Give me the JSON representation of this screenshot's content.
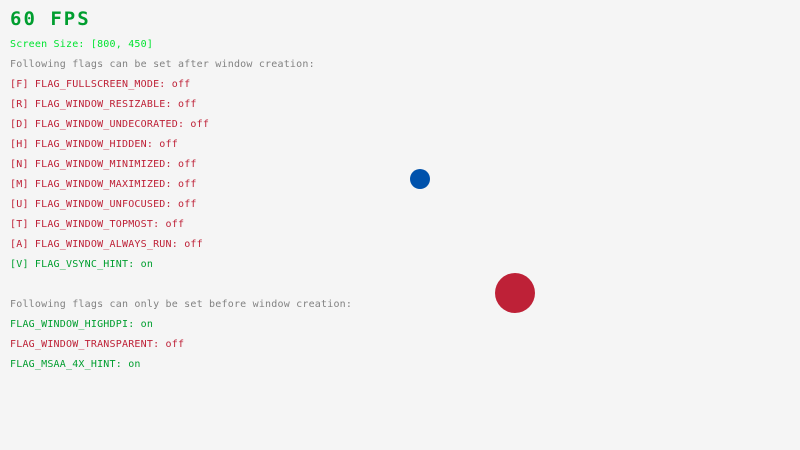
{
  "fps": "60 FPS",
  "screen_size": "Screen Size: [800, 450]",
  "after_header": "Following flags can be set after window creation:",
  "after_flags": [
    {
      "label": "[F] FLAG_FULLSCREEN_MODE: ",
      "state": "off"
    },
    {
      "label": "[R] FLAG_WINDOW_RESIZABLE: ",
      "state": "off"
    },
    {
      "label": "[D] FLAG_WINDOW_UNDECORATED: ",
      "state": "off"
    },
    {
      "label": "[H] FLAG_WINDOW_HIDDEN: ",
      "state": "off"
    },
    {
      "label": "[N] FLAG_WINDOW_MINIMIZED: ",
      "state": "off"
    },
    {
      "label": "[M] FLAG_WINDOW_MAXIMIZED: ",
      "state": "off"
    },
    {
      "label": "[U] FLAG_WINDOW_UNFOCUSED: ",
      "state": "off"
    },
    {
      "label": "[T] FLAG_WINDOW_TOPMOST: ",
      "state": "off"
    },
    {
      "label": "[A] FLAG_WINDOW_ALWAYS_RUN: ",
      "state": "off"
    },
    {
      "label": "[V] FLAG_VSYNC_HINT: ",
      "state": "on"
    }
  ],
  "before_header": "Following flags can only be set before window creation:",
  "before_flags": [
    {
      "label": "FLAG_WINDOW_HIGHDPI: ",
      "state": "on"
    },
    {
      "label": "FLAG_WINDOW_TRANSPARENT: ",
      "state": "off"
    },
    {
      "label": "FLAG_MSAA_4X_HINT: ",
      "state": "on"
    }
  ],
  "colors": {
    "background": "#f5f5f5",
    "on": "#009e2f",
    "off": "#be2137",
    "header": "#828282",
    "screen_size": "#00e430",
    "ball_small": "#0052ac",
    "ball_large": "#be2137"
  }
}
